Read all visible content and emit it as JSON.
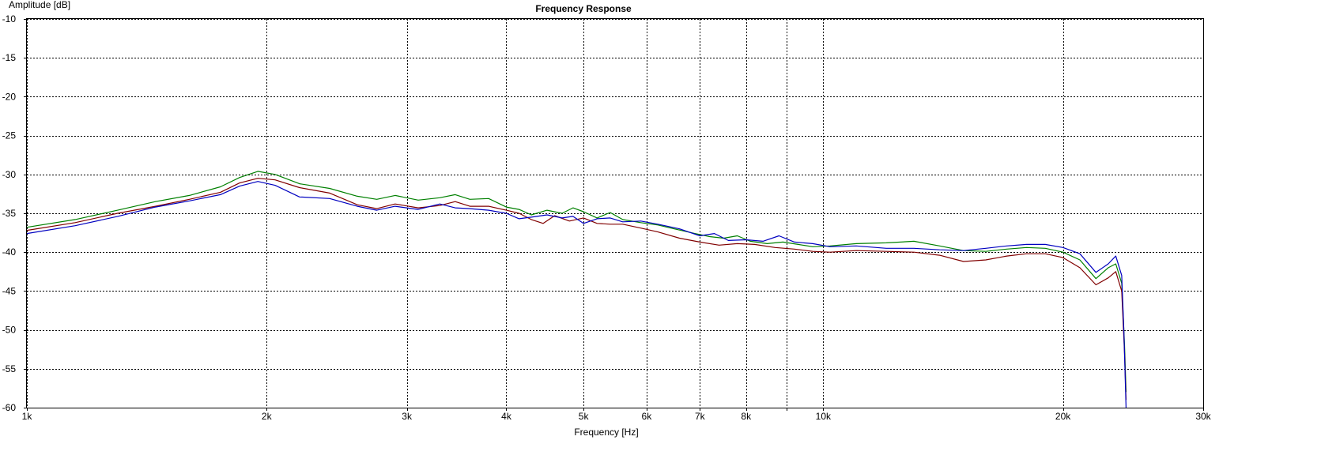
{
  "chart_data": {
    "type": "line",
    "title": "Frequency Response",
    "xlabel": "Frequency [Hz]",
    "ylabel": "Amplitude [dB]",
    "xscale": "log",
    "xlim": [
      1000,
      30000
    ],
    "ylim": [
      -60,
      -10
    ],
    "grid": true,
    "legend": "none",
    "xticks": [
      {
        "value": 1000,
        "label": "1k"
      },
      {
        "value": 2000,
        "label": "2k"
      },
      {
        "value": 3000,
        "label": "3k"
      },
      {
        "value": 4000,
        "label": "4k"
      },
      {
        "value": 5000,
        "label": "5k"
      },
      {
        "value": 6000,
        "label": "6k"
      },
      {
        "value": 7000,
        "label": "7k"
      },
      {
        "value": 8000,
        "label": "8k"
      },
      {
        "value": 9000,
        "label": ""
      },
      {
        "value": 10000,
        "label": "10k"
      },
      {
        "value": 20000,
        "label": "20k"
      },
      {
        "value": 30000,
        "label": "30k"
      }
    ],
    "yticks": [
      {
        "value": -10,
        "label": "-10"
      },
      {
        "value": -15,
        "label": "-15"
      },
      {
        "value": -20,
        "label": "-20"
      },
      {
        "value": -25,
        "label": "-25"
      },
      {
        "value": -30,
        "label": "-30"
      },
      {
        "value": -35,
        "label": "-35"
      },
      {
        "value": -40,
        "label": "-40"
      },
      {
        "value": -45,
        "label": "-45"
      },
      {
        "value": -50,
        "label": "-50"
      },
      {
        "value": -55,
        "label": "-55"
      },
      {
        "value": -60,
        "label": "-60"
      }
    ],
    "series": [
      {
        "color": "#008000",
        "points": [
          [
            1000,
            -36.8
          ],
          [
            1150,
            -35.8
          ],
          [
            1300,
            -34.6
          ],
          [
            1450,
            -33.5
          ],
          [
            1600,
            -32.7
          ],
          [
            1750,
            -31.6
          ],
          [
            1850,
            -30.4
          ],
          [
            1950,
            -29.6
          ],
          [
            2050,
            -30.0
          ],
          [
            2200,
            -31.2
          ],
          [
            2400,
            -31.8
          ],
          [
            2600,
            -32.8
          ],
          [
            2750,
            -33.2
          ],
          [
            2900,
            -32.7
          ],
          [
            3100,
            -33.3
          ],
          [
            3300,
            -33.0
          ],
          [
            3450,
            -32.6
          ],
          [
            3600,
            -33.2
          ],
          [
            3800,
            -33.1
          ],
          [
            4000,
            -34.2
          ],
          [
            4150,
            -34.5
          ],
          [
            4300,
            -35.2
          ],
          [
            4500,
            -34.6
          ],
          [
            4700,
            -35.0
          ],
          [
            4850,
            -34.3
          ],
          [
            5000,
            -34.8
          ],
          [
            5200,
            -35.6
          ],
          [
            5400,
            -34.9
          ],
          [
            5600,
            -35.8
          ],
          [
            5900,
            -36.2
          ],
          [
            6200,
            -36.5
          ],
          [
            6500,
            -37.0
          ],
          [
            6900,
            -37.6
          ],
          [
            7200,
            -38.0
          ],
          [
            7500,
            -38.2
          ],
          [
            7800,
            -37.9
          ],
          [
            8100,
            -38.6
          ],
          [
            8500,
            -38.9
          ],
          [
            8900,
            -38.7
          ],
          [
            9300,
            -39.0
          ],
          [
            9700,
            -39.3
          ],
          [
            10200,
            -39.2
          ],
          [
            11000,
            -38.9
          ],
          [
            12000,
            -38.8
          ],
          [
            13000,
            -38.6
          ],
          [
            14000,
            -39.2
          ],
          [
            15000,
            -39.8
          ],
          [
            16000,
            -39.9
          ],
          [
            17000,
            -39.6
          ],
          [
            18000,
            -39.4
          ],
          [
            19000,
            -39.5
          ],
          [
            20000,
            -40.0
          ],
          [
            21000,
            -41.0
          ],
          [
            22000,
            -43.4
          ],
          [
            22800,
            -42.0
          ],
          [
            23300,
            -41.5
          ],
          [
            23700,
            -44.0
          ],
          [
            23900,
            -52.0
          ],
          [
            24000,
            -58.0
          ]
        ]
      },
      {
        "color": "#800000",
        "points": [
          [
            1000,
            -37.2
          ],
          [
            1150,
            -36.2
          ],
          [
            1300,
            -35.0
          ],
          [
            1450,
            -34.1
          ],
          [
            1600,
            -33.2
          ],
          [
            1750,
            -32.3
          ],
          [
            1850,
            -31.1
          ],
          [
            1950,
            -30.5
          ],
          [
            2050,
            -30.7
          ],
          [
            2200,
            -31.7
          ],
          [
            2400,
            -32.4
          ],
          [
            2600,
            -33.9
          ],
          [
            2750,
            -34.4
          ],
          [
            2900,
            -33.8
          ],
          [
            3100,
            -34.3
          ],
          [
            3300,
            -34.0
          ],
          [
            3450,
            -33.5
          ],
          [
            3600,
            -34.1
          ],
          [
            3800,
            -34.1
          ],
          [
            4000,
            -34.6
          ],
          [
            4150,
            -35.0
          ],
          [
            4300,
            -35.8
          ],
          [
            4450,
            -36.3
          ],
          [
            4600,
            -35.3
          ],
          [
            4800,
            -36.0
          ],
          [
            5000,
            -35.6
          ],
          [
            5200,
            -36.3
          ],
          [
            5400,
            -36.4
          ],
          [
            5600,
            -36.4
          ],
          [
            5900,
            -36.9
          ],
          [
            6200,
            -37.4
          ],
          [
            6600,
            -38.2
          ],
          [
            7000,
            -38.7
          ],
          [
            7400,
            -39.1
          ],
          [
            7800,
            -38.9
          ],
          [
            8200,
            -39.0
          ],
          [
            8700,
            -39.4
          ],
          [
            9200,
            -39.6
          ],
          [
            9700,
            -39.9
          ],
          [
            10200,
            -40.0
          ],
          [
            11000,
            -39.8
          ],
          [
            12000,
            -39.9
          ],
          [
            13000,
            -40.0
          ],
          [
            14000,
            -40.4
          ],
          [
            15000,
            -41.2
          ],
          [
            16000,
            -41.0
          ],
          [
            17000,
            -40.5
          ],
          [
            18000,
            -40.2
          ],
          [
            19000,
            -40.2
          ],
          [
            20000,
            -40.7
          ],
          [
            21000,
            -42.0
          ],
          [
            22000,
            -44.2
          ],
          [
            22800,
            -43.3
          ],
          [
            23300,
            -42.5
          ],
          [
            23700,
            -45.0
          ],
          [
            23900,
            -53.0
          ],
          [
            24000,
            -59.0
          ]
        ]
      },
      {
        "color": "#0000c0",
        "points": [
          [
            1000,
            -37.6
          ],
          [
            1150,
            -36.6
          ],
          [
            1300,
            -35.4
          ],
          [
            1450,
            -34.2
          ],
          [
            1600,
            -33.4
          ],
          [
            1750,
            -32.6
          ],
          [
            1850,
            -31.5
          ],
          [
            1950,
            -30.9
          ],
          [
            2050,
            -31.4
          ],
          [
            2200,
            -32.9
          ],
          [
            2400,
            -33.1
          ],
          [
            2600,
            -34.1
          ],
          [
            2750,
            -34.6
          ],
          [
            2900,
            -34.1
          ],
          [
            3100,
            -34.5
          ],
          [
            3300,
            -33.8
          ],
          [
            3450,
            -34.3
          ],
          [
            3600,
            -34.4
          ],
          [
            3800,
            -34.6
          ],
          [
            4000,
            -35.0
          ],
          [
            4150,
            -35.7
          ],
          [
            4300,
            -35.5
          ],
          [
            4500,
            -35.2
          ],
          [
            4700,
            -35.6
          ],
          [
            4850,
            -35.4
          ],
          [
            5000,
            -36.3
          ],
          [
            5200,
            -35.7
          ],
          [
            5400,
            -35.6
          ],
          [
            5600,
            -36.1
          ],
          [
            5900,
            -36.0
          ],
          [
            6200,
            -36.4
          ],
          [
            6600,
            -37.0
          ],
          [
            7000,
            -37.9
          ],
          [
            7300,
            -37.6
          ],
          [
            7600,
            -38.5
          ],
          [
            8000,
            -38.4
          ],
          [
            8400,
            -38.6
          ],
          [
            8800,
            -37.9
          ],
          [
            9200,
            -38.7
          ],
          [
            9700,
            -38.9
          ],
          [
            10200,
            -39.3
          ],
          [
            11000,
            -39.2
          ],
          [
            12000,
            -39.5
          ],
          [
            13000,
            -39.5
          ],
          [
            14000,
            -39.7
          ],
          [
            15000,
            -39.8
          ],
          [
            16000,
            -39.5
          ],
          [
            17000,
            -39.2
          ],
          [
            18000,
            -39.0
          ],
          [
            19000,
            -39.0
          ],
          [
            20000,
            -39.4
          ],
          [
            21000,
            -40.2
          ],
          [
            22000,
            -42.6
          ],
          [
            22800,
            -41.5
          ],
          [
            23300,
            -40.5
          ],
          [
            23700,
            -43.0
          ],
          [
            23850,
            -50.0
          ],
          [
            24000,
            -60.0
          ]
        ]
      }
    ]
  }
}
